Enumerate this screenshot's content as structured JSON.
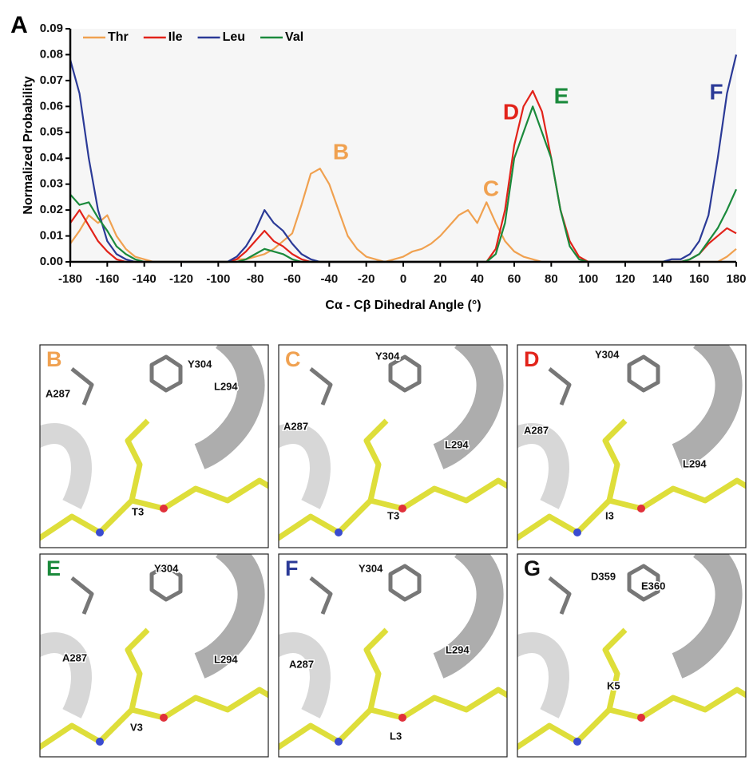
{
  "chart_data": {
    "type": "line",
    "panel_label": "A",
    "xlabel": "Cα - Cβ Dihedral Angle (°)",
    "ylabel": "Normalized Probability",
    "x": [
      -180,
      -175,
      -170,
      -165,
      -160,
      -155,
      -150,
      -145,
      -140,
      -135,
      -130,
      -125,
      -120,
      -115,
      -110,
      -105,
      -100,
      -95,
      -90,
      -85,
      -80,
      -75,
      -70,
      -65,
      -60,
      -55,
      -50,
      -45,
      -40,
      -35,
      -30,
      -25,
      -20,
      -15,
      -10,
      -5,
      0,
      5,
      10,
      15,
      20,
      25,
      30,
      35,
      40,
      45,
      50,
      55,
      60,
      65,
      70,
      75,
      80,
      85,
      90,
      95,
      100,
      105,
      110,
      115,
      120,
      125,
      130,
      135,
      140,
      145,
      150,
      155,
      160,
      165,
      170,
      175,
      180
    ],
    "series": [
      {
        "name": "Thr",
        "color": "#f0a150",
        "values": [
          0.007,
          0.012,
          0.018,
          0.015,
          0.018,
          0.01,
          0.005,
          0.002,
          0.001,
          0,
          0,
          0,
          0,
          0,
          0,
          0,
          0,
          0,
          0.001,
          0.001,
          0.002,
          0.003,
          0.005,
          0.008,
          0.011,
          0.022,
          0.034,
          0.036,
          0.03,
          0.02,
          0.01,
          0.005,
          0.002,
          0.001,
          0,
          0.001,
          0.002,
          0.004,
          0.005,
          0.007,
          0.01,
          0.014,
          0.018,
          0.02,
          0.015,
          0.023,
          0.015,
          0.008,
          0.004,
          0.002,
          0.001,
          0,
          0,
          0,
          0,
          0,
          0,
          0,
          0,
          0,
          0,
          0,
          0,
          0,
          0,
          0,
          0,
          0,
          0,
          0,
          0,
          0.002,
          0.005
        ]
      },
      {
        "name": "Ile",
        "color": "#e2231a",
        "values": [
          0.015,
          0.02,
          0.014,
          0.008,
          0.004,
          0.001,
          0,
          0,
          0,
          0,
          0,
          0,
          0,
          0,
          0,
          0,
          0,
          0,
          0.001,
          0.004,
          0.008,
          0.012,
          0.008,
          0.006,
          0.003,
          0.001,
          0,
          0,
          0,
          0,
          0,
          0,
          0,
          0,
          0,
          0,
          0,
          0,
          0,
          0,
          0,
          0,
          0,
          0,
          0,
          0,
          0.005,
          0.02,
          0.045,
          0.06,
          0.066,
          0.058,
          0.04,
          0.02,
          0.008,
          0.002,
          0,
          0,
          0,
          0,
          0,
          0,
          0,
          0,
          0,
          0,
          0,
          0.001,
          0.003,
          0.007,
          0.01,
          0.013,
          0.011
        ]
      },
      {
        "name": "Leu",
        "color": "#2b3a97",
        "values": [
          0.078,
          0.065,
          0.04,
          0.02,
          0.008,
          0.003,
          0.001,
          0,
          0,
          0,
          0,
          0,
          0,
          0,
          0,
          0,
          0,
          0,
          0.002,
          0.006,
          0.012,
          0.02,
          0.015,
          0.012,
          0.007,
          0.003,
          0.001,
          0,
          0,
          0,
          0,
          0,
          0,
          0,
          0,
          0,
          0,
          0,
          0,
          0,
          0,
          0,
          0,
          0,
          0,
          0,
          0,
          0,
          0,
          0,
          0,
          0,
          0,
          0,
          0,
          0,
          0,
          0,
          0,
          0,
          0,
          0,
          0,
          0,
          0,
          0.001,
          0.001,
          0.003,
          0.008,
          0.018,
          0.04,
          0.065,
          0.08
        ]
      },
      {
        "name": "Val",
        "color": "#1b8a3c",
        "values": [
          0.026,
          0.022,
          0.023,
          0.017,
          0.012,
          0.006,
          0.003,
          0.001,
          0,
          0,
          0,
          0,
          0,
          0,
          0,
          0,
          0,
          0,
          0,
          0.001,
          0.003,
          0.005,
          0.004,
          0.003,
          0.001,
          0,
          0,
          0,
          0,
          0,
          0,
          0,
          0,
          0,
          0,
          0,
          0,
          0,
          0,
          0,
          0,
          0,
          0,
          0,
          0,
          0,
          0.003,
          0.015,
          0.04,
          0.05,
          0.06,
          0.05,
          0.04,
          0.02,
          0.006,
          0.001,
          0,
          0,
          0,
          0,
          0,
          0,
          0,
          0,
          0,
          0,
          0,
          0.001,
          0.003,
          0.008,
          0.013,
          0.02,
          0.028
        ]
      }
    ],
    "xlim": [
      -180,
      180
    ],
    "xticks": [
      -180,
      -160,
      -140,
      -120,
      -100,
      -80,
      -60,
      -40,
      -20,
      0,
      20,
      40,
      60,
      80,
      100,
      120,
      140,
      160,
      180
    ],
    "ylim": [
      0,
      0.09
    ],
    "yticks": [
      {
        "value": 0,
        "label": "0.00"
      },
      {
        "value": 0.01,
        "label": "0.01"
      },
      {
        "value": 0.02,
        "label": "0.02"
      },
      {
        "value": 0.03,
        "label": "0.03"
      },
      {
        "value": 0.04,
        "label": "0.04"
      },
      {
        "value": 0.05,
        "label": "0.05"
      },
      {
        "value": 0.06,
        "label": "0.06"
      },
      {
        "value": 0.07,
        "label": "0.07"
      },
      {
        "value": 0.08,
        "label": "0.08"
      },
      {
        "value": 0.09,
        "label": "0.09"
      }
    ],
    "annotations": [
      {
        "text": "B",
        "color": "#f0a150"
      },
      {
        "text": "C",
        "color": "#f0a150"
      },
      {
        "text": "D",
        "color": "#e2231a"
      },
      {
        "text": "E",
        "color": "#1b8a3c"
      },
      {
        "text": "F",
        "color": "#2b3a97"
      }
    ],
    "legend": "top-left"
  },
  "panels": [
    {
      "letter": "B",
      "color": "#f0a150",
      "labels": [
        "A287",
        "Y304",
        "L294",
        "T3"
      ]
    },
    {
      "letter": "C",
      "color": "#f0a150",
      "labels": [
        "Y304",
        "A287",
        "L294",
        "T3"
      ]
    },
    {
      "letter": "D",
      "color": "#e2231a",
      "labels": [
        "Y304",
        "A287",
        "L294",
        "I3"
      ]
    },
    {
      "letter": "E",
      "color": "#1b8a3c",
      "labels": [
        "Y304",
        "A287",
        "L294",
        "V3"
      ]
    },
    {
      "letter": "F",
      "color": "#2b3a97",
      "labels": [
        "Y304",
        "A287",
        "L294",
        "L3"
      ]
    },
    {
      "letter": "G",
      "color": "#111111",
      "labels": [
        "D359",
        "E360",
        "K5"
      ]
    }
  ]
}
